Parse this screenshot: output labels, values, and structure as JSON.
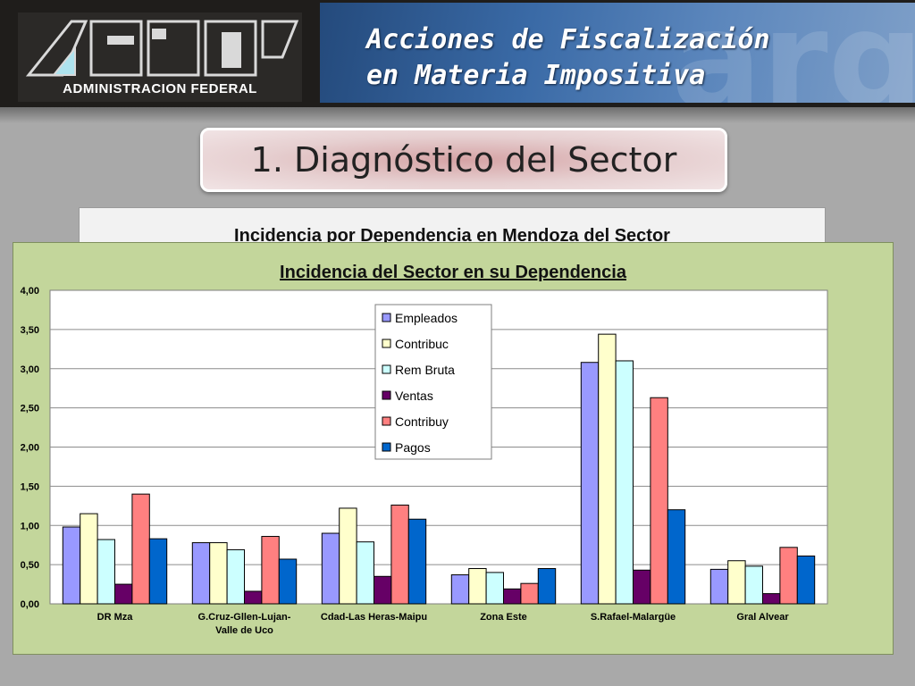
{
  "header": {
    "logo_caption": "ADMINISTRACION FEDERAL",
    "banner_line_1": "Acciones de Fiscalización",
    "banner_line_2": "en Materia Impositiva",
    "watermark": "arg"
  },
  "section_title": "1.  Diagnóstico del Sector",
  "back_card_title": "Incidencia por Dependencia en Mendoza del Sector",
  "colors": {
    "panel_background": "#c3d69b",
    "plot_background": "#ffffff",
    "header_background": "#1f1d1b"
  },
  "chart_data": {
    "type": "bar",
    "title": "Incidencia del Sector en su Dependencia",
    "xlabel": "",
    "ylabel": "",
    "ylim": [
      0,
      4
    ],
    "yticks": [
      "0,00",
      "0,50",
      "1,00",
      "1,50",
      "2,00",
      "2,50",
      "3,00",
      "3,50",
      "4,00"
    ],
    "grid": true,
    "legend_position": "top-center",
    "categories": [
      [
        "DR Mza"
      ],
      [
        "G.Cruz-Gllen-Lujan-",
        "Valle de Uco"
      ],
      [
        "Cdad-Las Heras-Maipu"
      ],
      [
        "Zona Este"
      ],
      [
        "S.Rafael-Malargüe"
      ],
      [
        "Gral Alvear"
      ]
    ],
    "series": [
      {
        "name": "Empleados",
        "color": "#9999ff",
        "values": [
          0.98,
          0.78,
          0.9,
          0.37,
          3.08,
          0.44
        ]
      },
      {
        "name": "Contribuc",
        "color": "#ffffcc",
        "values": [
          1.15,
          0.78,
          1.22,
          0.45,
          3.44,
          0.55
        ]
      },
      {
        "name": "Rem Bruta",
        "color": "#ccffff",
        "values": [
          0.82,
          0.69,
          0.79,
          0.4,
          3.1,
          0.48
        ]
      },
      {
        "name": "Ventas",
        "color": "#660066",
        "values": [
          0.25,
          0.16,
          0.35,
          0.19,
          0.43,
          0.13
        ]
      },
      {
        "name": "Contribuy",
        "color": "#ff8080",
        "values": [
          1.4,
          0.86,
          1.26,
          0.26,
          2.63,
          0.72
        ]
      },
      {
        "name": "Pagos",
        "color": "#0066cc",
        "values": [
          0.83,
          0.57,
          1.08,
          0.45,
          1.2,
          0.61
        ]
      }
    ]
  }
}
